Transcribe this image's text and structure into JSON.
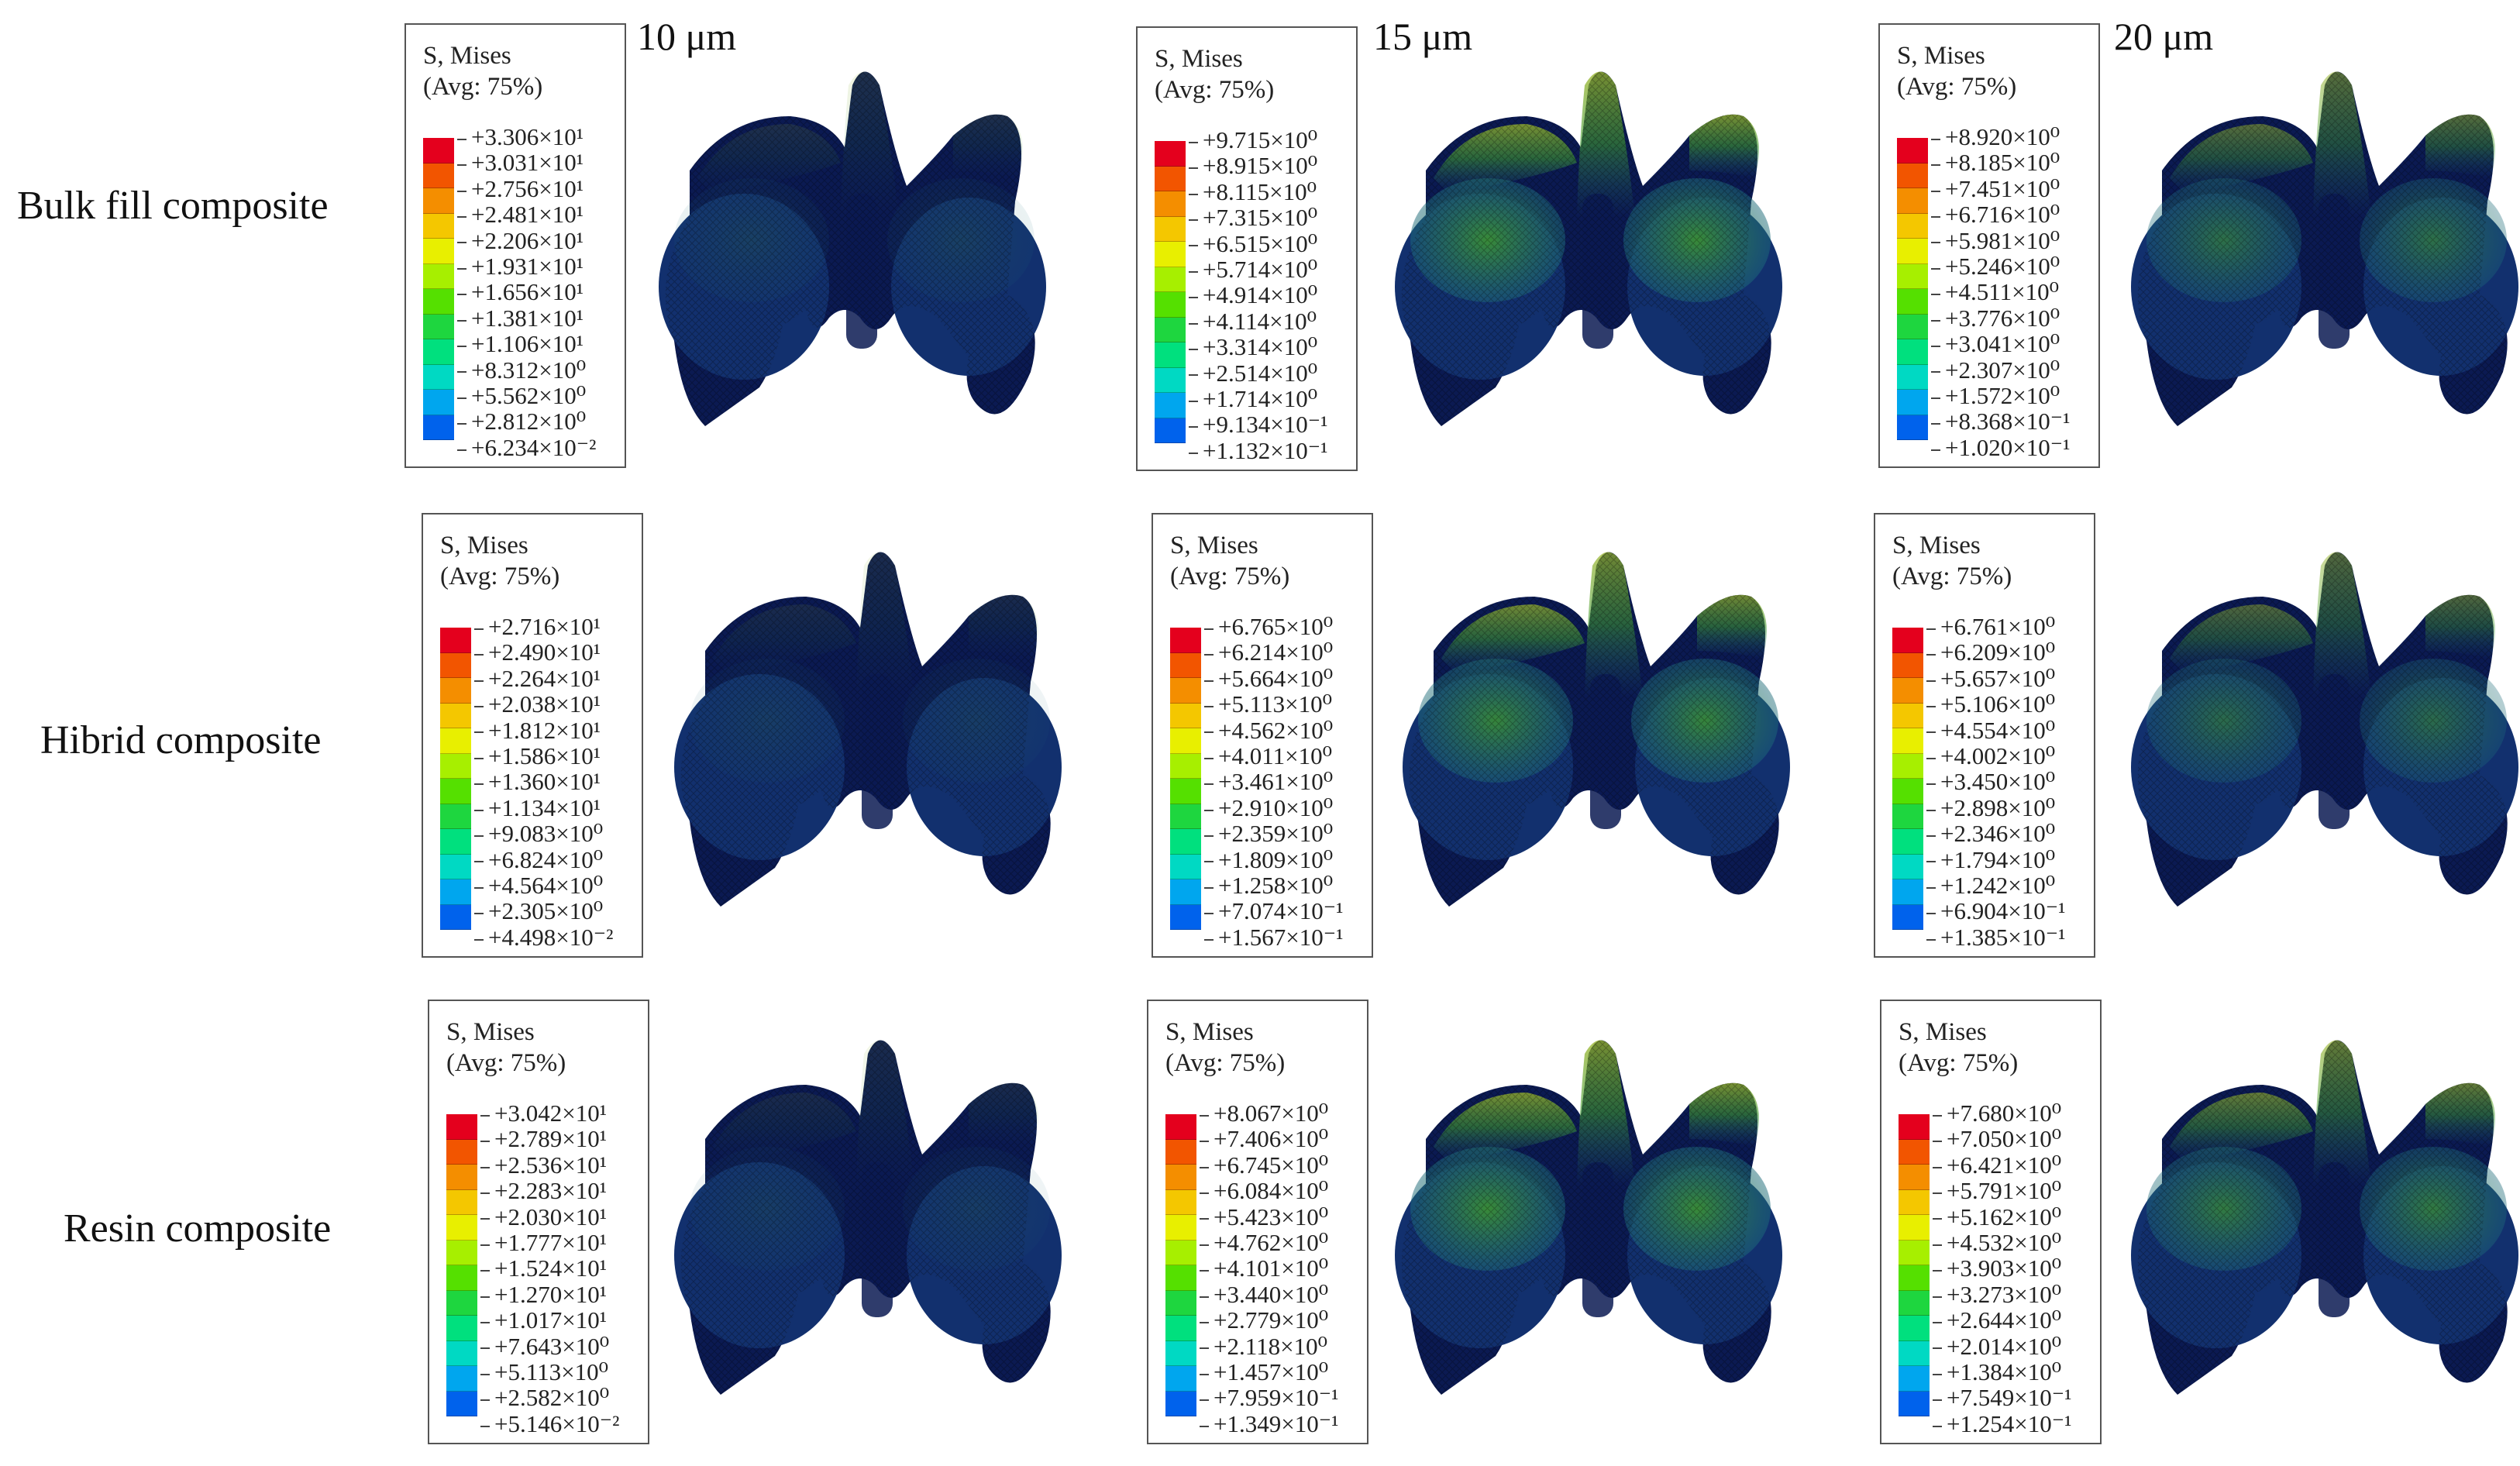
{
  "columns": [
    "10 μm",
    "15 μm",
    "20 μm"
  ],
  "rows": [
    "Bulk fill composite",
    "Hibrid composite",
    "Resin composite"
  ],
  "legend_title": "S, Mises",
  "legend_subtitle": "(Avg: 75%)",
  "colormap": [
    "#e4001d",
    "#f25500",
    "#f48e00",
    "#f4c700",
    "#e8ef00",
    "#a7ef00",
    "#55e000",
    "#1ed63f",
    "#00e07e",
    "#00d9c3",
    "#00a6ee",
    "#0062ec",
    "#0018e4"
  ],
  "legends": [
    [
      [
        "+3.306×10¹",
        "+3.031×10¹",
        "+2.756×10¹",
        "+2.481×10¹",
        "+2.206×10¹",
        "+1.931×10¹",
        "+1.656×10¹",
        "+1.381×10¹",
        "+1.106×10¹",
        "+8.312×10⁰",
        "+5.562×10⁰",
        "+2.812×10⁰",
        "+6.234×10⁻²"
      ],
      [
        "+9.715×10⁰",
        "+8.915×10⁰",
        "+8.115×10⁰",
        "+7.315×10⁰",
        "+6.515×10⁰",
        "+5.714×10⁰",
        "+4.914×10⁰",
        "+4.114×10⁰",
        "+3.314×10⁰",
        "+2.514×10⁰",
        "+1.714×10⁰",
        "+9.134×10⁻¹",
        "+1.132×10⁻¹"
      ],
      [
        "+8.920×10⁰",
        "+8.185×10⁰",
        "+7.451×10⁰",
        "+6.716×10⁰",
        "+5.981×10⁰",
        "+5.246×10⁰",
        "+4.511×10⁰",
        "+3.776×10⁰",
        "+3.041×10⁰",
        "+2.307×10⁰",
        "+1.572×10⁰",
        "+8.368×10⁻¹",
        "+1.020×10⁻¹"
      ]
    ],
    [
      [
        "+2.716×10¹",
        "+2.490×10¹",
        "+2.264×10¹",
        "+2.038×10¹",
        "+1.812×10¹",
        "+1.586×10¹",
        "+1.360×10¹",
        "+1.134×10¹",
        "+9.083×10⁰",
        "+6.824×10⁰",
        "+4.564×10⁰",
        "+2.305×10⁰",
        "+4.498×10⁻²"
      ],
      [
        "+6.765×10⁰",
        "+6.214×10⁰",
        "+5.664×10⁰",
        "+5.113×10⁰",
        "+4.562×10⁰",
        "+4.011×10⁰",
        "+3.461×10⁰",
        "+2.910×10⁰",
        "+2.359×10⁰",
        "+1.809×10⁰",
        "+1.258×10⁰",
        "+7.074×10⁻¹",
        "+1.567×10⁻¹"
      ],
      [
        "+6.761×10⁰",
        "+6.209×10⁰",
        "+5.657×10⁰",
        "+5.106×10⁰",
        "+4.554×10⁰",
        "+4.002×10⁰",
        "+3.450×10⁰",
        "+2.898×10⁰",
        "+2.346×10⁰",
        "+1.794×10⁰",
        "+1.242×10⁰",
        "+6.904×10⁻¹",
        "+1.385×10⁻¹"
      ]
    ],
    [
      [
        "+3.042×10¹",
        "+2.789×10¹",
        "+2.536×10¹",
        "+2.283×10¹",
        "+2.030×10¹",
        "+1.777×10¹",
        "+1.524×10¹",
        "+1.270×10¹",
        "+1.017×10¹",
        "+7.643×10⁰",
        "+5.113×10⁰",
        "+2.582×10⁰",
        "+5.146×10⁻²"
      ],
      [
        "+8.067×10⁰",
        "+7.406×10⁰",
        "+6.745×10⁰",
        "+6.084×10⁰",
        "+5.423×10⁰",
        "+4.762×10⁰",
        "+4.101×10⁰",
        "+3.440×10⁰",
        "+2.779×10⁰",
        "+2.118×10⁰",
        "+1.457×10⁰",
        "+7.959×10⁻¹",
        "+1.349×10⁻¹"
      ],
      [
        "+7.680×10⁰",
        "+7.050×10⁰",
        "+6.421×10⁰",
        "+5.791×10⁰",
        "+5.162×10⁰",
        "+4.532×10⁰",
        "+3.903×10⁰",
        "+3.273×10⁰",
        "+2.644×10⁰",
        "+2.014×10⁰",
        "+1.384×10⁰",
        "+7.549×10⁻¹",
        "+1.254×10⁻¹"
      ]
    ]
  ],
  "model_colors": {
    "base": "#0b1a52",
    "low": "#12306e",
    "mid": "#1e6b7a",
    "high": "#3f9a2e",
    "peak": "#9ab52a"
  }
}
